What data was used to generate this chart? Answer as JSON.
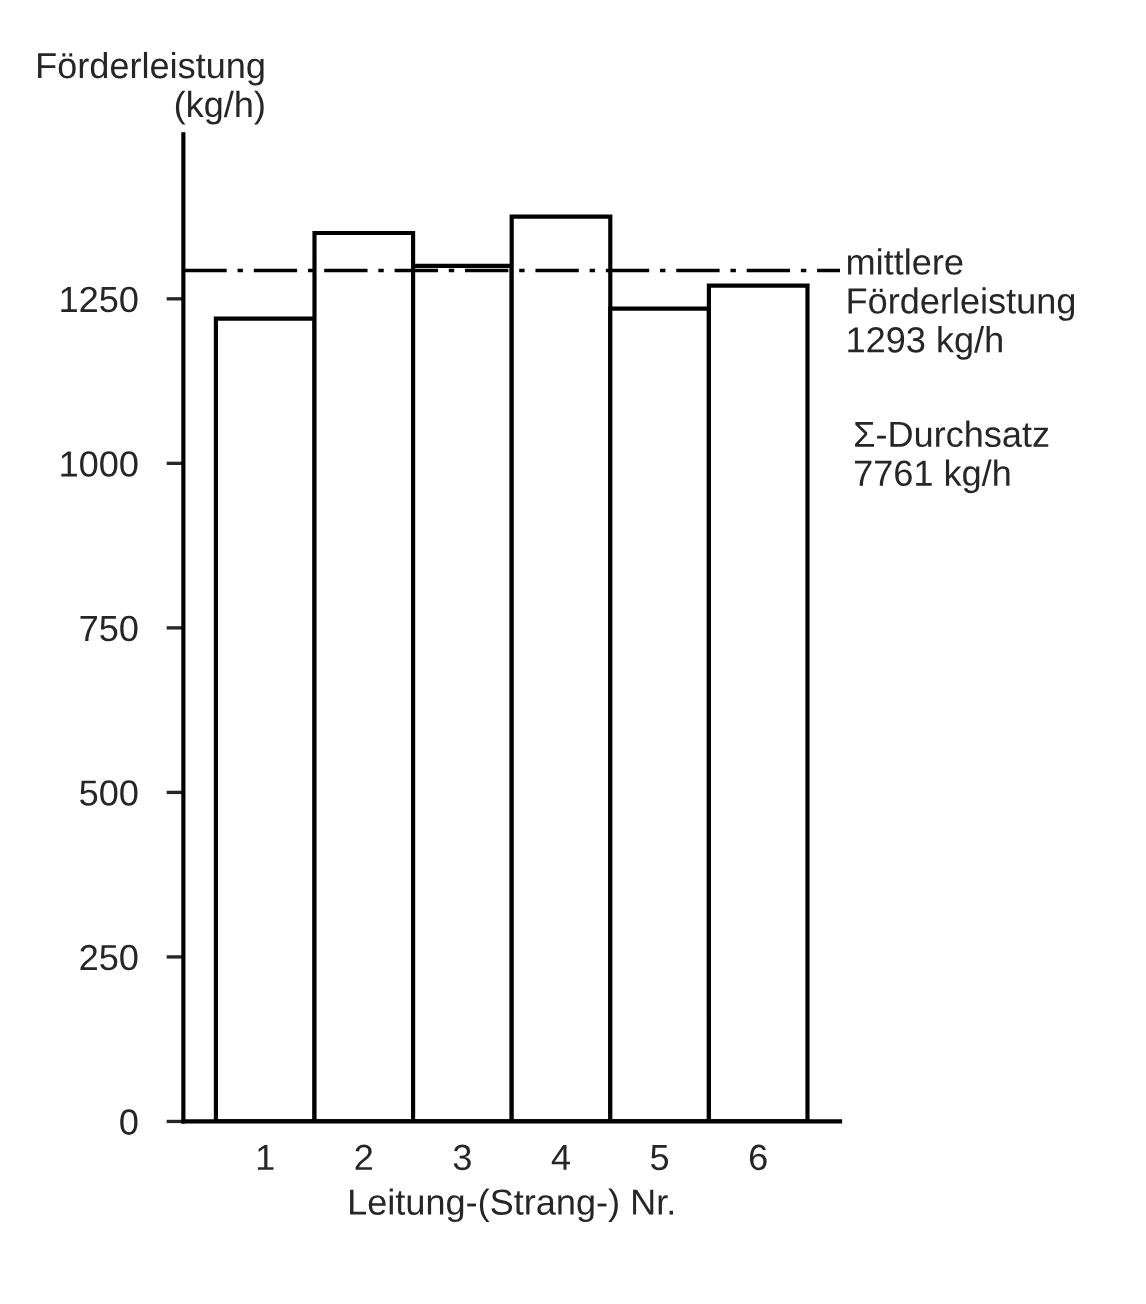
{
  "chart_data": {
    "type": "bar",
    "categories": [
      "1",
      "2",
      "3",
      "4",
      "5",
      "6"
    ],
    "values": [
      1220,
      1350,
      1300,
      1375,
      1235,
      1270
    ],
    "color": "#ffffff",
    "xlabel": "Leitung-(Strang-) Nr.",
    "ylabel": "Förderleistung\n(kg/h)",
    "ylim": [
      0,
      1500
    ],
    "yticks": [
      0,
      250,
      500,
      750,
      1000,
      1250
    ],
    "ref_lines": [
      {
        "axis": "y",
        "value": 1293,
        "label": "mittlere\nFörderleistung\n1293 kg/h",
        "line_style": "dashdot",
        "color": "#000000"
      }
    ],
    "annotations": [
      "Σ-Durchsatz\n7761 kg/h"
    ]
  }
}
